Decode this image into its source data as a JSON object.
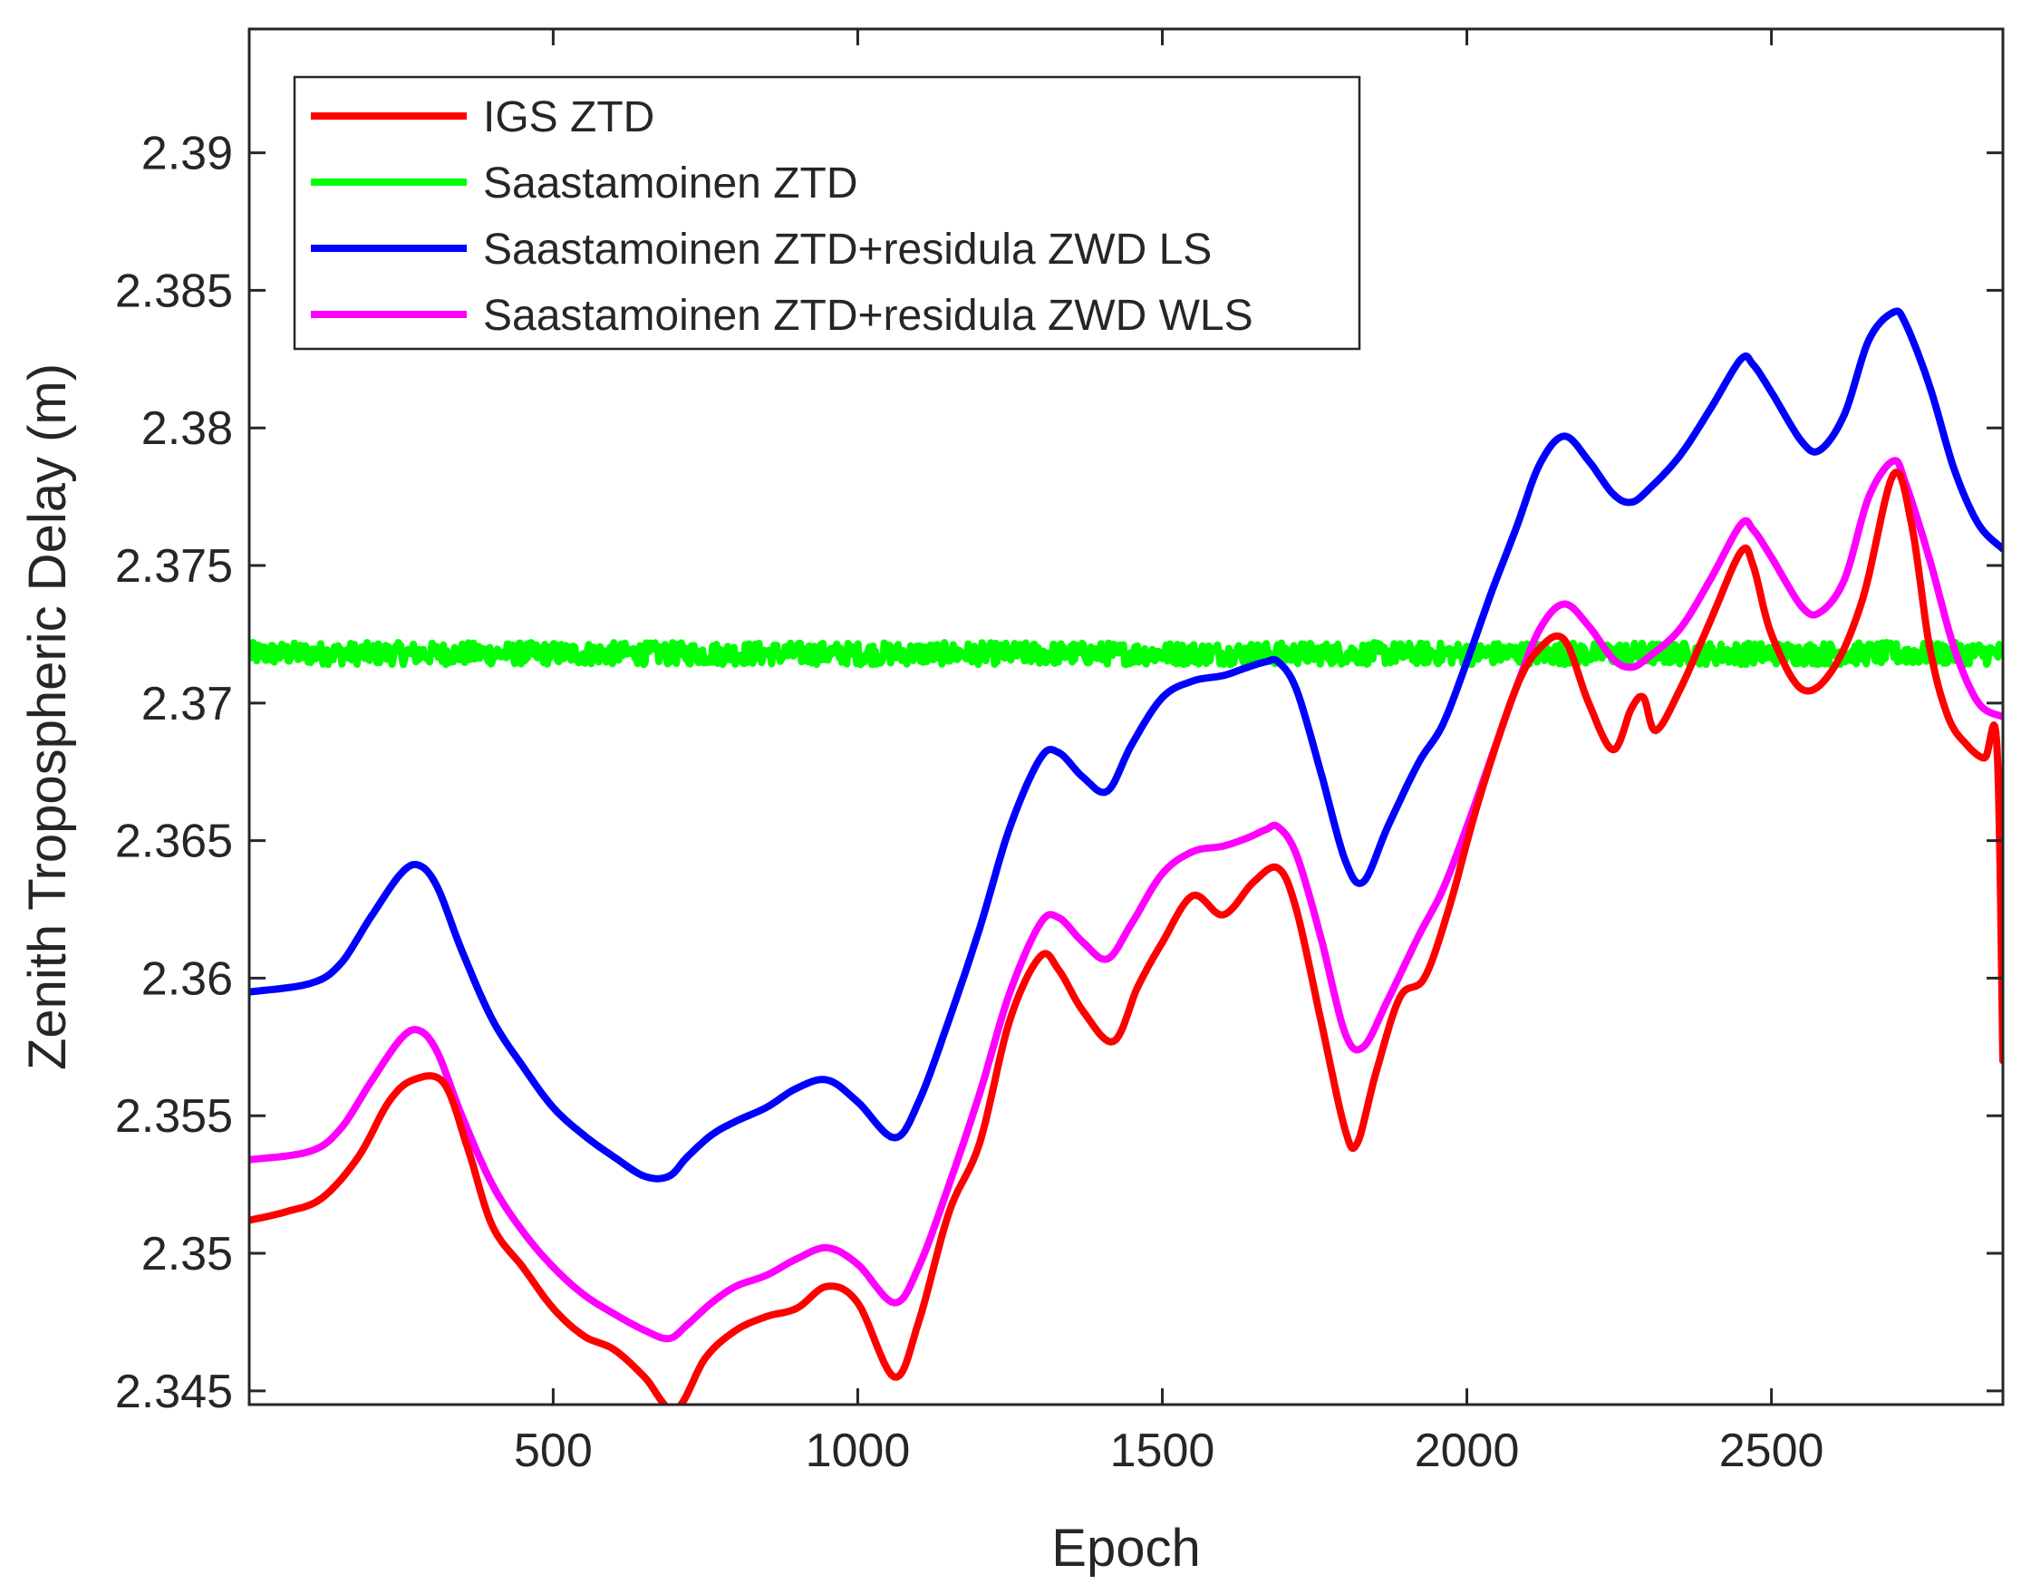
{
  "chart_data": {
    "type": "line",
    "title": "",
    "xlabel": "Epoch",
    "ylabel": "Zenith Tropospheric Delay (m)",
    "xlim": [
      1,
      2880
    ],
    "ylim": [
      2.3445,
      2.3945
    ],
    "xticks": [
      500,
      1000,
      1500,
      2000,
      2500
    ],
    "xtick_labels": [
      "500",
      "1000",
      "1500",
      "2000",
      "2500"
    ],
    "yticks": [
      2.345,
      2.35,
      2.355,
      2.36,
      2.365,
      2.37,
      2.375,
      2.38,
      2.385,
      2.39
    ],
    "ytick_labels": [
      "2.345",
      "2.35",
      "2.355",
      "2.36",
      "2.365",
      "2.37",
      "2.375",
      "2.38",
      "2.385",
      "2.39"
    ],
    "grid": false,
    "legend_position": "top-left",
    "series": [
      {
        "name": "IGS ZTD",
        "color": "#ff0000",
        "x": [
          1,
          60,
          120,
          180,
          230,
          270,
          320,
          360,
          400,
          450,
          500,
          550,
          600,
          650,
          700,
          750,
          800,
          850,
          900,
          950,
          1000,
          1060,
          1100,
          1150,
          1200,
          1250,
          1300,
          1330,
          1370,
          1420,
          1460,
          1500,
          1550,
          1600,
          1650,
          1690,
          1720,
          1760,
          1800,
          1820,
          1850,
          1890,
          1930,
          1970,
          2020,
          2080,
          2120,
          2160,
          2200,
          2240,
          2270,
          2290,
          2310,
          2350,
          2400,
          2450,
          2470,
          2500,
          2550,
          2600,
          2650,
          2700,
          2730,
          2760,
          2790,
          2820,
          2850,
          2870,
          2880
        ],
        "values": [
          2.3512,
          2.3515,
          2.352,
          2.3535,
          2.3555,
          2.3563,
          2.3562,
          2.3538,
          2.351,
          2.3495,
          2.348,
          2.347,
          2.3465,
          2.3455,
          2.3443,
          2.3462,
          2.3472,
          2.3477,
          2.348,
          2.3488,
          2.3482,
          2.3455,
          2.3475,
          2.3515,
          2.354,
          2.3585,
          2.3608,
          2.3603,
          2.3588,
          2.3577,
          2.3597,
          2.3613,
          2.363,
          2.3623,
          2.3635,
          2.364,
          2.3625,
          2.3585,
          2.3545,
          2.354,
          2.3565,
          2.3593,
          2.36,
          2.3625,
          2.3665,
          2.3705,
          2.372,
          2.3723,
          2.37,
          2.3683,
          2.3698,
          2.3702,
          2.369,
          2.3705,
          2.373,
          2.3755,
          2.375,
          2.3725,
          2.3705,
          2.3712,
          2.3738,
          2.3783,
          2.3765,
          2.372,
          2.3695,
          2.3685,
          2.368,
          2.3685,
          2.357
        ]
      },
      {
        "name": "Saastamoinen ZTD",
        "color": "#00ff00",
        "x": [
          1,
          2880
        ],
        "values": [
          2.3718,
          2.3718
        ],
        "noise_amplitude": 0.0004
      },
      {
        "name": "Saastamoinen ZTD+residula ZWD LS",
        "color": "#0000ff",
        "x": [
          1,
          100,
          150,
          200,
          250,
          280,
          310,
          350,
          400,
          450,
          500,
          550,
          600,
          650,
          690,
          720,
          760,
          800,
          850,
          900,
          950,
          1000,
          1060,
          1100,
          1150,
          1200,
          1250,
          1300,
          1330,
          1370,
          1410,
          1450,
          1500,
          1550,
          1600,
          1640,
          1670,
          1690,
          1720,
          1760,
          1800,
          1830,
          1870,
          1920,
          1960,
          2000,
          2040,
          2080,
          2120,
          2160,
          2200,
          2240,
          2270,
          2300,
          2350,
          2400,
          2450,
          2470,
          2500,
          2550,
          2580,
          2620,
          2660,
          2700,
          2720,
          2760,
          2800,
          2840,
          2880
        ],
        "values": [
          2.3595,
          2.3598,
          2.3605,
          2.3622,
          2.3638,
          2.3641,
          2.3633,
          2.361,
          2.3585,
          2.3568,
          2.3553,
          2.3543,
          2.3535,
          2.3528,
          2.3528,
          2.3535,
          2.3543,
          2.3548,
          2.3553,
          2.356,
          2.3563,
          2.3555,
          2.3542,
          2.3555,
          2.3585,
          2.3618,
          2.3655,
          2.368,
          2.3682,
          2.3673,
          2.3668,
          2.3685,
          2.3702,
          2.3708,
          2.371,
          2.3713,
          2.3715,
          2.3715,
          2.3705,
          2.3675,
          2.3643,
          2.3635,
          2.3655,
          2.3678,
          2.3692,
          2.3715,
          2.374,
          2.3763,
          2.3787,
          2.3797,
          2.3788,
          2.3776,
          2.3773,
          2.3778,
          2.379,
          2.3807,
          2.3825,
          2.3823,
          2.3813,
          2.3795,
          2.3792,
          2.3805,
          2.3832,
          2.3842,
          2.3838,
          2.3815,
          2.3785,
          2.3765,
          2.3756
        ]
      },
      {
        "name": "Saastamoinen ZTD+residula ZWD WLS",
        "color": "#ff00ff",
        "x": [
          1,
          100,
          150,
          200,
          250,
          280,
          310,
          350,
          400,
          450,
          500,
          550,
          600,
          650,
          690,
          720,
          760,
          800,
          850,
          900,
          950,
          1000,
          1060,
          1100,
          1150,
          1200,
          1250,
          1300,
          1330,
          1370,
          1410,
          1450,
          1500,
          1550,
          1600,
          1640,
          1670,
          1690,
          1720,
          1760,
          1800,
          1830,
          1870,
          1920,
          1960,
          2000,
          2040,
          2080,
          2120,
          2160,
          2200,
          2240,
          2270,
          2300,
          2350,
          2400,
          2450,
          2470,
          2500,
          2550,
          2580,
          2620,
          2660,
          2700,
          2720,
          2760,
          2800,
          2840,
          2880
        ],
        "values": [
          2.3534,
          2.3537,
          2.3545,
          2.3562,
          2.3578,
          2.3581,
          2.3573,
          2.355,
          2.3525,
          2.3508,
          2.3495,
          2.3485,
          2.3478,
          2.3472,
          2.3469,
          2.3474,
          2.3482,
          2.3488,
          2.3492,
          2.3498,
          2.3502,
          2.3496,
          2.3482,
          2.3495,
          2.3525,
          2.3558,
          2.3595,
          2.362,
          2.3622,
          2.3613,
          2.3607,
          2.362,
          2.3638,
          2.3646,
          2.3648,
          2.3651,
          2.3654,
          2.3655,
          2.3645,
          2.3615,
          2.358,
          2.3575,
          2.3592,
          2.3615,
          2.3632,
          2.3655,
          2.368,
          2.3705,
          2.3727,
          2.3736,
          2.3728,
          2.3716,
          2.3713,
          2.3717,
          2.3727,
          2.3745,
          2.3765,
          2.3763,
          2.3753,
          2.3735,
          2.3733,
          2.3745,
          2.3775,
          2.3788,
          2.378,
          2.3752,
          2.372,
          2.37,
          2.3695
        ]
      }
    ]
  }
}
